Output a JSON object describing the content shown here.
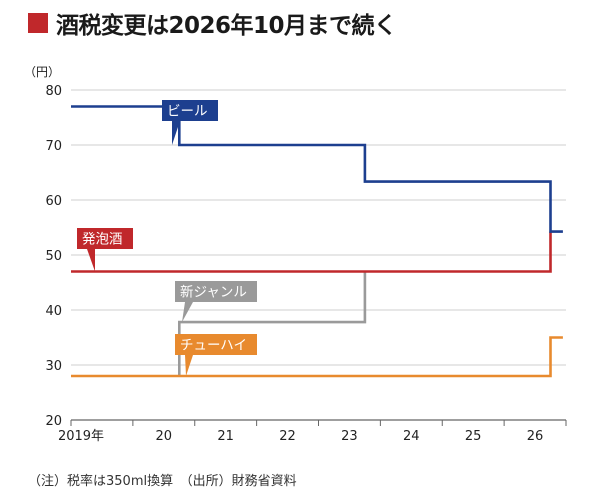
{
  "title": "酒税変更は2026年10月まで続く",
  "note": "（注）税率は350ml換算　（出所）財務省資料",
  "chart_data": {
    "type": "line",
    "step": true,
    "yunit": "（円）",
    "ylim": [
      20,
      80
    ],
    "yticks": [
      20,
      30,
      40,
      50,
      60,
      70,
      80
    ],
    "xticks": [
      "2019年",
      "20",
      "21",
      "22",
      "23",
      "24",
      "25",
      "26"
    ],
    "grid": true,
    "series": [
      {
        "name": "ビール",
        "color": "#1d3f8f",
        "points": [
          [
            2019,
            77
          ],
          [
            2020.75,
            77
          ],
          [
            2020.75,
            70
          ],
          [
            2023.75,
            70
          ],
          [
            2023.75,
            63.35
          ],
          [
            2026.75,
            63.35
          ],
          [
            2026.75,
            54.25
          ],
          [
            2026.95,
            54.25
          ]
        ]
      },
      {
        "name": "発泡酒",
        "color": "#c0282b",
        "points": [
          [
            2019,
            47
          ],
          [
            2026.75,
            47
          ],
          [
            2026.75,
            54.25
          ]
        ]
      },
      {
        "name": "新ジャンル",
        "color": "#9a9a9a",
        "points": [
          [
            2020.75,
            28
          ],
          [
            2020.75,
            37.8
          ],
          [
            2023.75,
            37.8
          ],
          [
            2023.75,
            46.99
          ]
        ]
      },
      {
        "name": "チューハイ",
        "color": "#e88a2e",
        "points": [
          [
            2019,
            28
          ],
          [
            2026.75,
            28
          ],
          [
            2026.75,
            35
          ],
          [
            2026.95,
            35
          ]
        ]
      }
    ]
  }
}
